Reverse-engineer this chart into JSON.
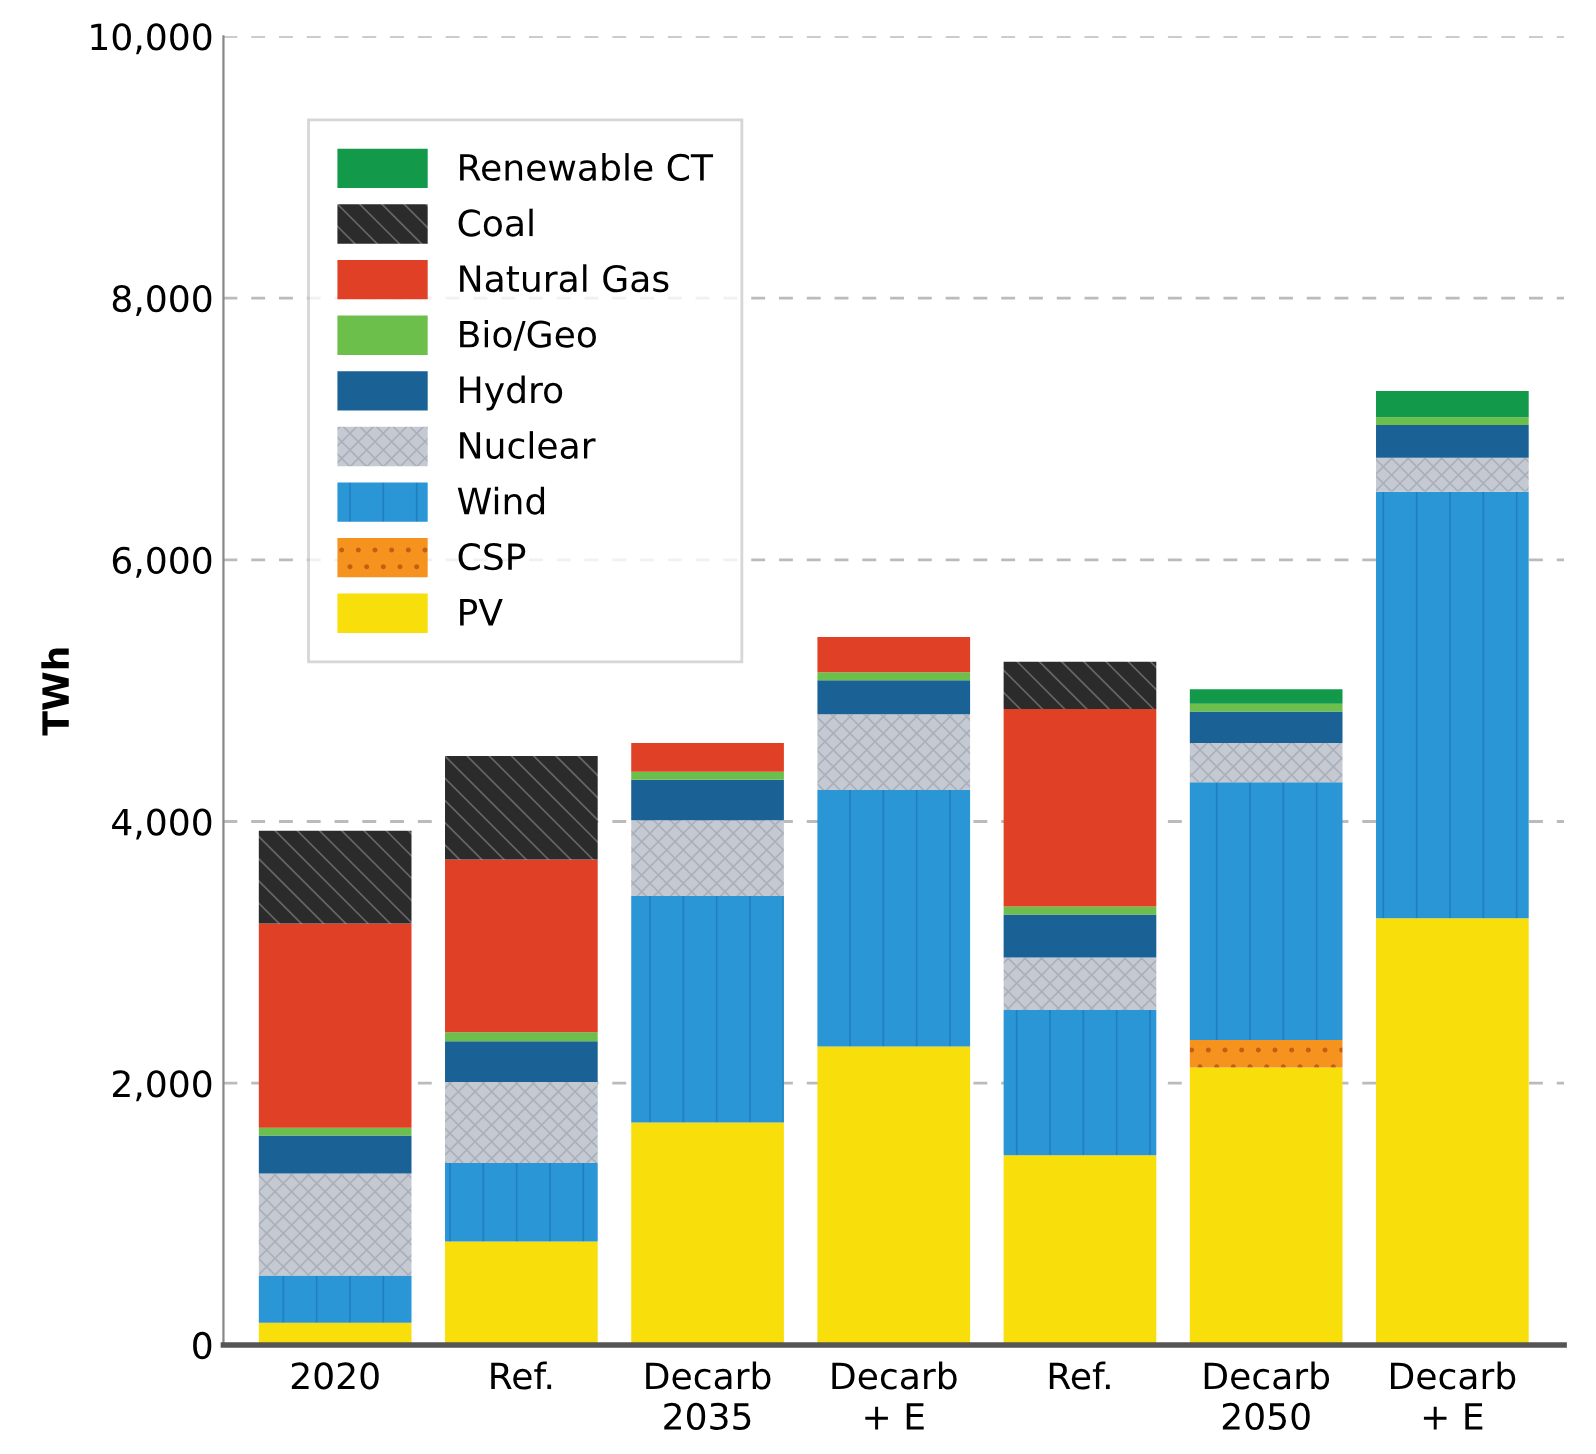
{
  "chart_data": {
    "type": "bar",
    "stacked": true,
    "ylabel": "TWh",
    "categories": [
      "2020",
      "Ref.",
      "Decarb\n2035",
      "Decarb\n+ E",
      "Ref.",
      "Decarb\n2050",
      "Decarb\n+ E"
    ],
    "series": [
      {
        "name": "PV",
        "color": "#f8df0b",
        "values": [
          170,
          790,
          1700,
          2280,
          1450,
          2120,
          3260
        ]
      },
      {
        "name": "CSP",
        "color": "#f6921e",
        "values": [
          0,
          0,
          0,
          0,
          0,
          210,
          0
        ]
      },
      {
        "name": "Wind",
        "color": "#2a96d6",
        "values": [
          360,
          600,
          1730,
          1960,
          1110,
          1970,
          3260
        ]
      },
      {
        "name": "Nuclear",
        "color": "#c5c9d2",
        "values": [
          780,
          620,
          580,
          580,
          400,
          300,
          260
        ]
      },
      {
        "name": "Hydro",
        "color": "#1a6296",
        "values": [
          290,
          310,
          310,
          260,
          330,
          240,
          250
        ]
      },
      {
        "name": "Bio/Geo",
        "color": "#6dbf4b",
        "values": [
          60,
          70,
          60,
          60,
          60,
          60,
          60
        ]
      },
      {
        "name": "Natural Gas",
        "color": "#e04126",
        "values": [
          1560,
          1320,
          220,
          270,
          1510,
          0,
          0
        ]
      },
      {
        "name": "Coal",
        "color": "#2b2b2b",
        "values": [
          710,
          790,
          0,
          0,
          360,
          0,
          0
        ]
      },
      {
        "name": "Renewable CT",
        "color": "#12994a",
        "values": [
          0,
          0,
          0,
          0,
          0,
          110,
          200
        ]
      }
    ],
    "ylim": [
      0,
      10000
    ],
    "yticks": [
      {
        "value": 0,
        "label": "0"
      },
      {
        "value": 2000,
        "label": "2,000"
      },
      {
        "value": 4000,
        "label": "4,000"
      },
      {
        "value": 6000,
        "label": "6,000"
      },
      {
        "value": 8000,
        "label": "8,000"
      },
      {
        "value": 10000,
        "label": "10,000"
      }
    ],
    "grid": "y",
    "legend": "top left"
  }
}
